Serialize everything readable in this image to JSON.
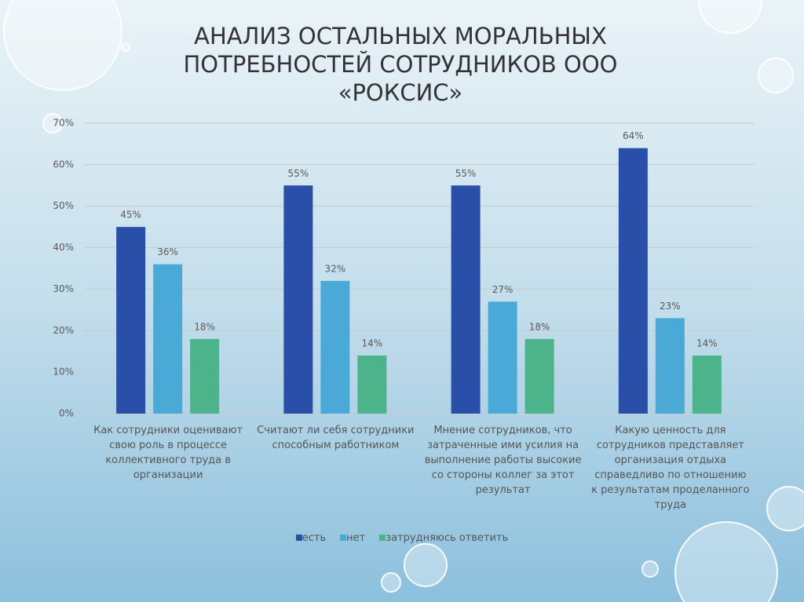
{
  "chart_data": {
    "type": "bar",
    "title": "АНАЛИЗ ОСТАЛЬНЫХ МОРАЛЬНЫХ ПОТРЕБНОСТЕЙ СОТРУДНИКОВ ООО «РОКСИС»",
    "categories": [
      "Как сотрудники оценивают свою роль в процессе коллективного труда в организации",
      "Считают ли себя сотрудники способным работником",
      "Мнение сотрудников, что затраченные ими усилия на выполнение работы высокие со стороны коллег за этот результат",
      "Какую ценность для сотрудников представляет организация отдыха справедливо по отношению к результатам проделанного труда"
    ],
    "series": [
      {
        "name": "есть",
        "color": "#2a4fa8",
        "values": [
          45,
          55,
          55,
          64
        ],
        "value_labels": [
          "45%",
          "55%",
          "55%",
          "64%"
        ]
      },
      {
        "name": "нет",
        "color": "#4aa9d6",
        "values": [
          36,
          32,
          27,
          23
        ],
        "value_labels": [
          "36%",
          "32%",
          "27%",
          "23%"
        ]
      },
      {
        "name": "затрудняюсь ответить",
        "color": "#4db38b",
        "values": [
          18,
          14,
          18,
          14
        ],
        "value_labels": [
          "18%",
          "14%",
          "18%",
          "14%"
        ]
      }
    ],
    "ylim": [
      0,
      70
    ],
    "yticks": [
      {
        "value": 0,
        "label": "0%"
      },
      {
        "value": 10,
        "label": "10%"
      },
      {
        "value": 20,
        "label": "20%"
      },
      {
        "value": 30,
        "label": "30%"
      },
      {
        "value": 40,
        "label": "40%"
      },
      {
        "value": 50,
        "label": "50%"
      },
      {
        "value": 60,
        "label": "60%"
      },
      {
        "value": 70,
        "label": "70%"
      }
    ],
    "grid": true,
    "legend": "bottom"
  }
}
